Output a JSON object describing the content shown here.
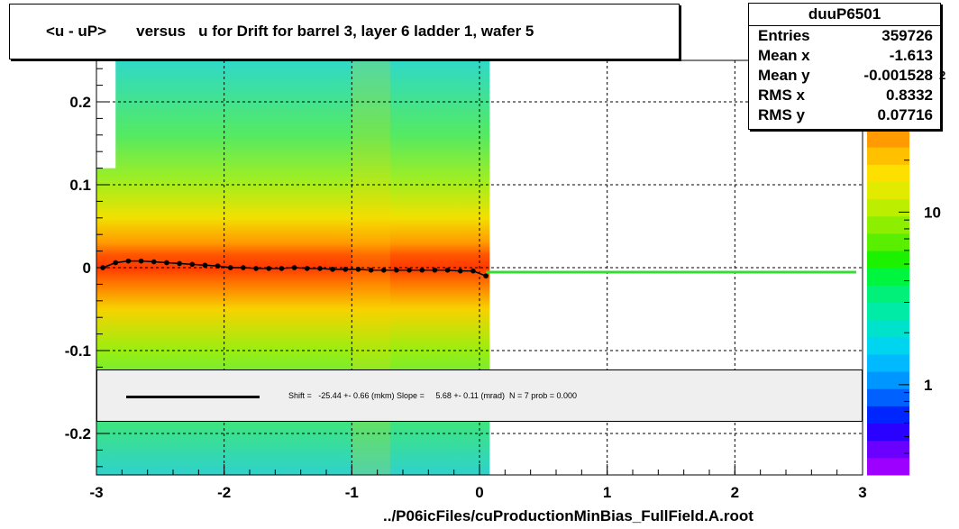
{
  "title": "<u - uP>       versus   u for Drift for barrel 3, layer 6 ladder 1, wafer 5",
  "stats": {
    "name": "duuP6501",
    "rows": [
      {
        "label": "Entries",
        "value": "359726"
      },
      {
        "label": "Mean x",
        "value": "-1.613"
      },
      {
        "label": "Mean y",
        "value": "-0.001528"
      },
      {
        "label": "RMS x",
        "value": "0.8332"
      },
      {
        "label": "RMS y",
        "value": "0.07716"
      }
    ]
  },
  "stats_overflow_glyph": "2",
  "fit_text": "Shift =   -25.44 +- 0.66 (mkm) Slope =     5.68 +- 0.11 (mrad)  N = 7 prob = 0.000",
  "chart_data": {
    "type": "heatmap",
    "xlabel": "../P06icFiles/cuProductionMinBias_FullField.A.root",
    "ylabel": "",
    "xlim": [
      -3,
      3
    ],
    "ylim": [
      -0.25,
      0.25
    ],
    "x_ticks": [
      -3,
      -2,
      -1,
      0,
      1,
      2,
      3
    ],
    "x_tick_labels": [
      "-3",
      "-2",
      "-1",
      "0",
      "1",
      "2",
      "3"
    ],
    "y_ticks": [
      -0.2,
      -0.1,
      0,
      0.1,
      0.2
    ],
    "y_tick_labels": [
      "-0.2",
      "-0.1",
      "0",
      "0.1",
      "0.2"
    ],
    "grid": true,
    "colorbar": {
      "scale": "log",
      "tick_labels": [
        "1",
        "10"
      ],
      "colors": [
        "#9d00ff",
        "#6a00ff",
        "#2a00ff",
        "#0026ff",
        "#0061ff",
        "#0096ff",
        "#00b9ff",
        "#00d5f0",
        "#00e2cc",
        "#00eba6",
        "#00f07a",
        "#00f53e",
        "#1cf200",
        "#5aee00",
        "#8eee00",
        "#bcee00",
        "#e2ea00",
        "#fde000",
        "#ffc000",
        "#ff9a00"
      ]
    },
    "series": [
      {
        "type": "points",
        "color": "#000000",
        "x": [
          -2.95,
          -2.85,
          -2.75,
          -2.65,
          -2.55,
          -2.45,
          -2.35,
          -2.25,
          -2.15,
          -2.05,
          -1.95,
          -1.85,
          -1.75,
          -1.65,
          -1.55,
          -1.45,
          -1.35,
          -1.25,
          -1.15,
          -1.05,
          -0.95,
          -0.85,
          -0.75,
          -0.65,
          -0.55,
          -0.45,
          -0.35,
          -0.25,
          -0.15,
          -0.05,
          0.05
        ],
        "y": [
          0.0,
          0.006,
          0.008,
          0.008,
          0.007,
          0.006,
          0.005,
          0.004,
          0.003,
          0.002,
          0.0,
          0.0,
          -0.001,
          -0.001,
          -0.001,
          0.0,
          -0.001,
          -0.001,
          -0.002,
          -0.002,
          -0.002,
          -0.003,
          -0.003,
          -0.003,
          -0.003,
          -0.003,
          -0.003,
          -0.003,
          -0.004,
          -0.004,
          -0.01
        ]
      },
      {
        "type": "line",
        "color": "#33dd33",
        "x": [
          0.05,
          2.95
        ],
        "y": [
          -0.0055,
          -0.0055
        ]
      }
    ]
  }
}
